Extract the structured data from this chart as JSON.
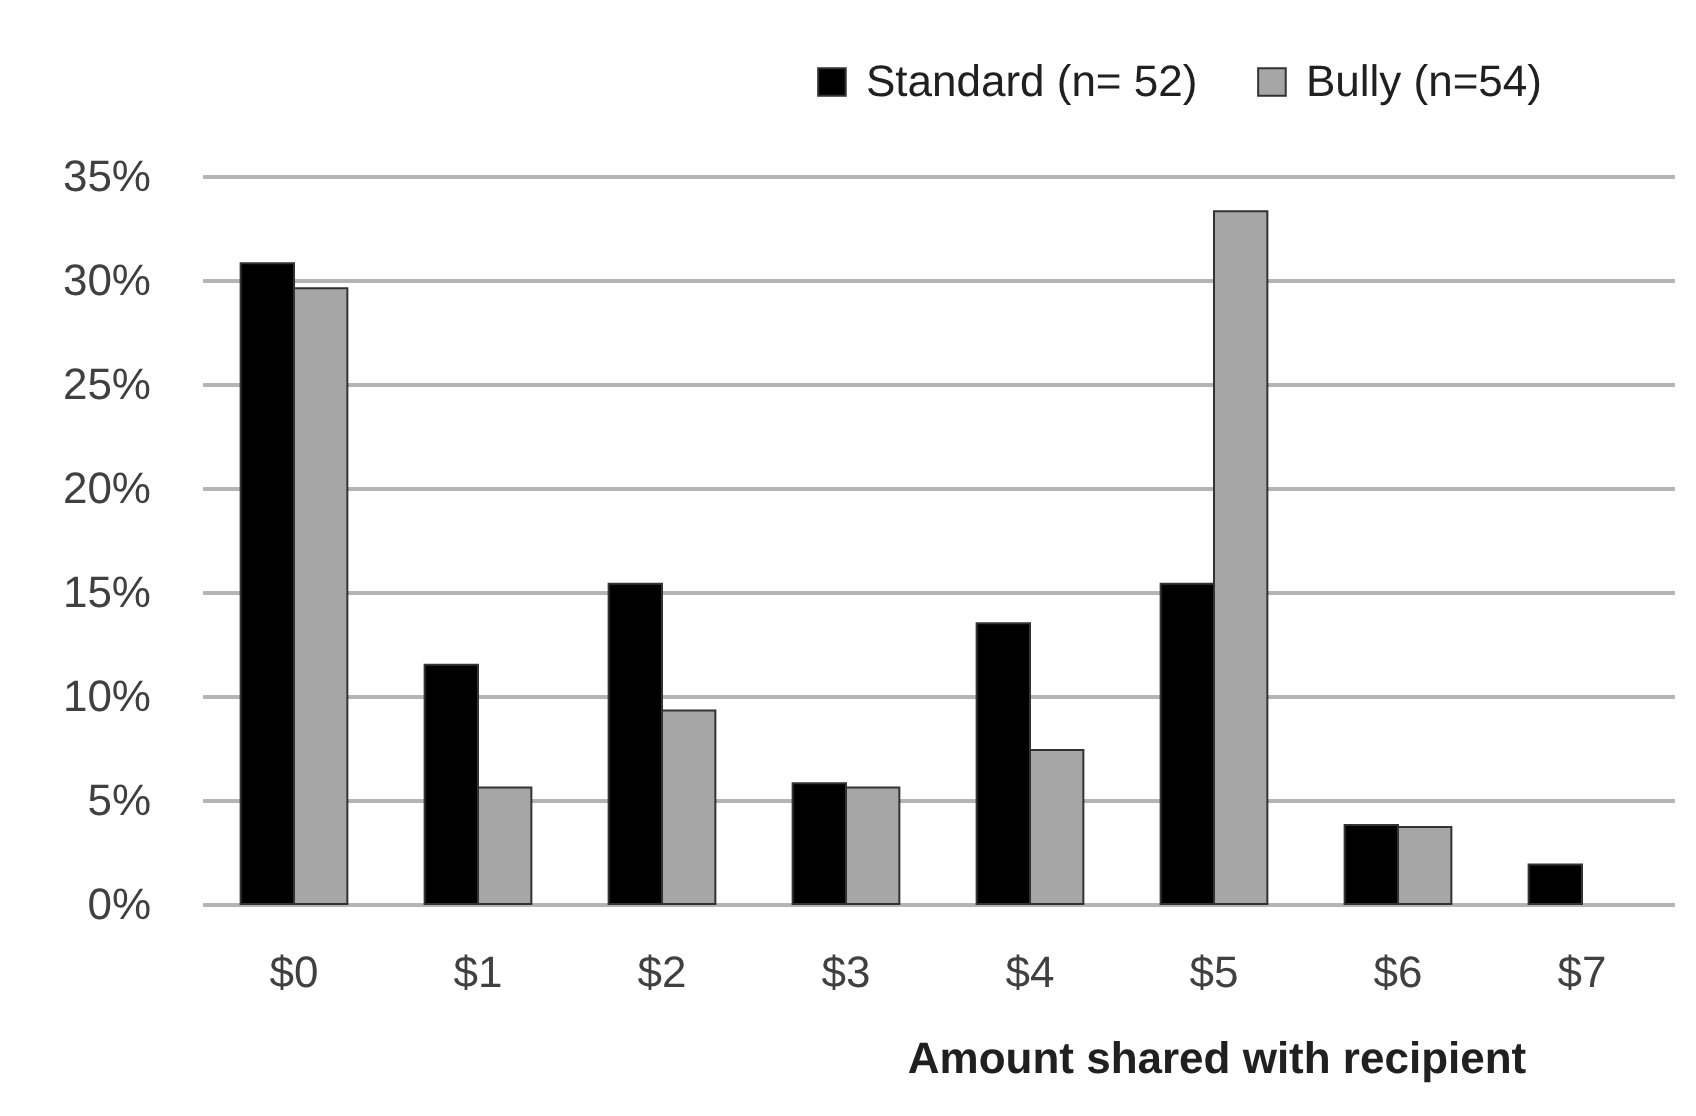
{
  "chart_data": {
    "type": "bar",
    "categories": [
      "$0",
      "$1",
      "$2",
      "$3",
      "$4",
      "$5",
      "$6",
      "$7"
    ],
    "series": [
      {
        "name": "Standard (n= 52)",
        "color": "#000000",
        "values": [
          30.8,
          11.5,
          15.4,
          5.8,
          13.5,
          15.4,
          3.8,
          1.9
        ]
      },
      {
        "name": "Bully (n=54)",
        "color": "#a6a6a6",
        "values": [
          29.6,
          5.6,
          9.3,
          5.6,
          7.4,
          33.3,
          3.7,
          null
        ]
      }
    ],
    "xlabel": "Amount shared with recipient",
    "ylim": [
      0,
      35
    ],
    "yticks": [
      {
        "value": 0,
        "label": "0%"
      },
      {
        "value": 5,
        "label": "5%"
      },
      {
        "value": 10,
        "label": "10%"
      },
      {
        "value": 15,
        "label": "15%"
      },
      {
        "value": 20,
        "label": "20%"
      },
      {
        "value": 25,
        "label": "25%"
      },
      {
        "value": 30,
        "label": "30%"
      },
      {
        "value": 35,
        "label": "35%"
      }
    ],
    "grid": "y",
    "legend": "top right"
  }
}
